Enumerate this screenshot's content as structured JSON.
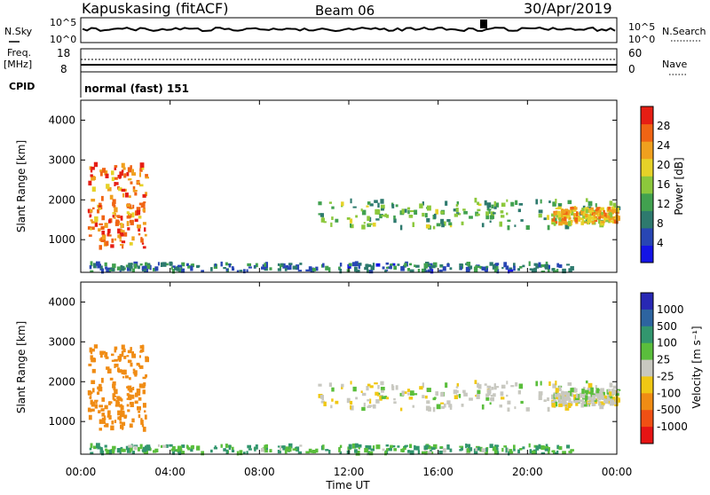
{
  "header": {
    "station": "Kapuskasing (fitACF)",
    "beam": "Beam 06",
    "date": "30/Apr/2019"
  },
  "panels": {
    "nsky_label": "N.Sky",
    "nsky_ticks": [
      "10^5",
      "10^0"
    ],
    "nsearch_label": "N.Search",
    "nsearch_ticks": [
      "10^5",
      "10^0"
    ],
    "freq_label_1": "Freq.",
    "freq_label_2": "[MHz]",
    "freq_ticks": [
      "18",
      "8"
    ],
    "nave_label": "Nave",
    "nave_ticks": [
      "60",
      "0"
    ],
    "cpid_label": "CPID",
    "cpid_text": "normal (fast) 151"
  },
  "axes": {
    "slant_range_label": "Slant Range [km]",
    "range_ticks": [
      "1000",
      "2000",
      "3000",
      "4000"
    ],
    "time_ticks": [
      "00:00",
      "04:00",
      "08:00",
      "12:00",
      "16:00",
      "20:00",
      "00:00"
    ],
    "time_label": "Time UT"
  },
  "colorbars": {
    "power": {
      "label": "Power [dB]",
      "ticks": [
        "4",
        "8",
        "12",
        "16",
        "20",
        "24",
        "28"
      ],
      "colors": [
        "#1414e6",
        "#2846b4",
        "#2e7a6e",
        "#41a14f",
        "#8cc83c",
        "#e6d228",
        "#f0a01e",
        "#f06414",
        "#e61e14"
      ]
    },
    "velocity": {
      "label": "Velocity [m s⁻¹]",
      "ticks": [
        "1000",
        "500",
        "100",
        "25",
        "-25",
        "-100",
        "-500",
        "-1000"
      ],
      "colors": [
        "#2828b4",
        "#2d64a0",
        "#32966e",
        "#5abe3c",
        "#c8c8c0",
        "#f0c814",
        "#f08c14",
        "#f05014",
        "#e61414"
      ]
    }
  },
  "chart_data": {
    "type": "heatmap",
    "title": "Kapuskasing (fitACF) Beam 06 30/Apr/2019",
    "xlabel": "Time UT",
    "ylabel": "Slant Range [km]",
    "x_range_hours": [
      0,
      24
    ],
    "y_range_km": [
      180,
      4500
    ],
    "echo_regions": [
      {
        "t_start": 0.3,
        "t_end": 2.9,
        "range_start": 800,
        "range_end": 2900,
        "power_dB": 26,
        "velocity_ms": -300
      },
      {
        "t_start": 0.3,
        "t_end": 22.0,
        "range_start": 200,
        "range_end": 400,
        "power_dB": 10,
        "velocity_ms": 60
      },
      {
        "t_start": 10.4,
        "t_end": 24.0,
        "range_start": 1300,
        "range_end": 2000,
        "power_dB": 14,
        "velocity_ms": 0
      },
      {
        "t_start": 21.0,
        "t_end": 24.0,
        "range_start": 1400,
        "range_end": 1800,
        "power_dB": 22,
        "velocity_ms": 0
      }
    ],
    "frequency_MHz": 10,
    "nave_level": 5
  }
}
